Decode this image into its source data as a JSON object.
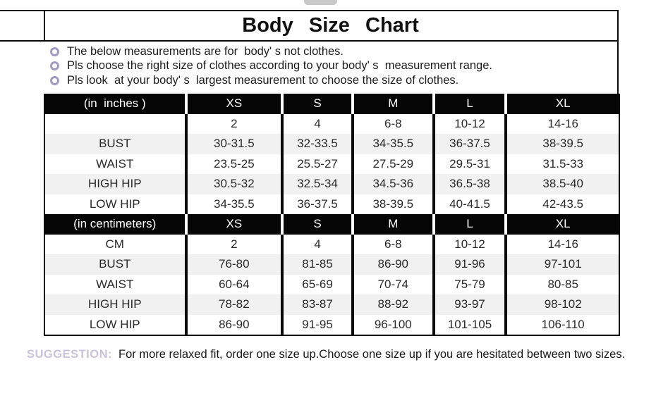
{
  "top_tab": {
    "color": "#c9c9c9"
  },
  "notes": [
    "The below measurements are for  body' s not clothes.",
    "Pls choose the right size of clothes according to your body' s  measurement range.",
    "Pls look  at your body' s  largest measurement to choose the size of clothes."
  ],
  "style": {
    "bullet_color": "#a39ac4",
    "header_bg": "#060606",
    "alt_row_color": "#f1f1f1",
    "suggestion_label_color": "#cbc2dc"
  },
  "chart_data": {
    "type": "table",
    "title": "Body  Size  Chart",
    "columns": [
      "XS",
      "S",
      "M",
      "L",
      "XL"
    ],
    "sections": [
      {
        "header": "(in  inches )",
        "rows": [
          {
            "label": "",
            "values": [
              "2",
              "4",
              "6-8",
              "10-12",
              "14-16"
            ]
          },
          {
            "label": "BUST",
            "values": [
              "30-31.5",
              "32-33.5",
              "34-35.5",
              "36-37.5",
              "38-39.5"
            ]
          },
          {
            "label": "WAIST",
            "values": [
              "23.5-25",
              "25.5-27",
              "27.5-29",
              "29.5-31",
              "31.5-33"
            ]
          },
          {
            "label": "HIGH HIP",
            "values": [
              "30.5-32",
              "32.5-34",
              "34.5-36",
              "36.5-38",
              "38.5-40"
            ]
          },
          {
            "label": "LOW HIP",
            "values": [
              "34-35.5",
              "36-37.5",
              "38-39.5",
              "40-41.5",
              "42-43.5"
            ]
          }
        ]
      },
      {
        "header": "(in centimeters)",
        "rows": [
          {
            "label": "CM",
            "values": [
              "2",
              "4",
              "6-8",
              "10-12",
              "14-16"
            ]
          },
          {
            "label": "BUST",
            "values": [
              "76-80",
              "81-85",
              "86-90",
              "91-96",
              "97-101"
            ]
          },
          {
            "label": "WAIST",
            "values": [
              "60-64",
              "65-69",
              "70-74",
              "75-79",
              "80-85"
            ]
          },
          {
            "label": "HIGH HIP",
            "values": [
              "78-82",
              "83-87",
              "88-92",
              "93-97",
              "98-102"
            ]
          },
          {
            "label": "LOW HIP",
            "values": [
              "86-90",
              "91-95",
              "96-100",
              "101-105",
              "106-110"
            ]
          }
        ]
      }
    ]
  },
  "suggestion": {
    "label": "SUGGESTION:",
    "text": "For more relaxed fit, order one size up.Choose one size up if you are hesitated between two sizes."
  }
}
